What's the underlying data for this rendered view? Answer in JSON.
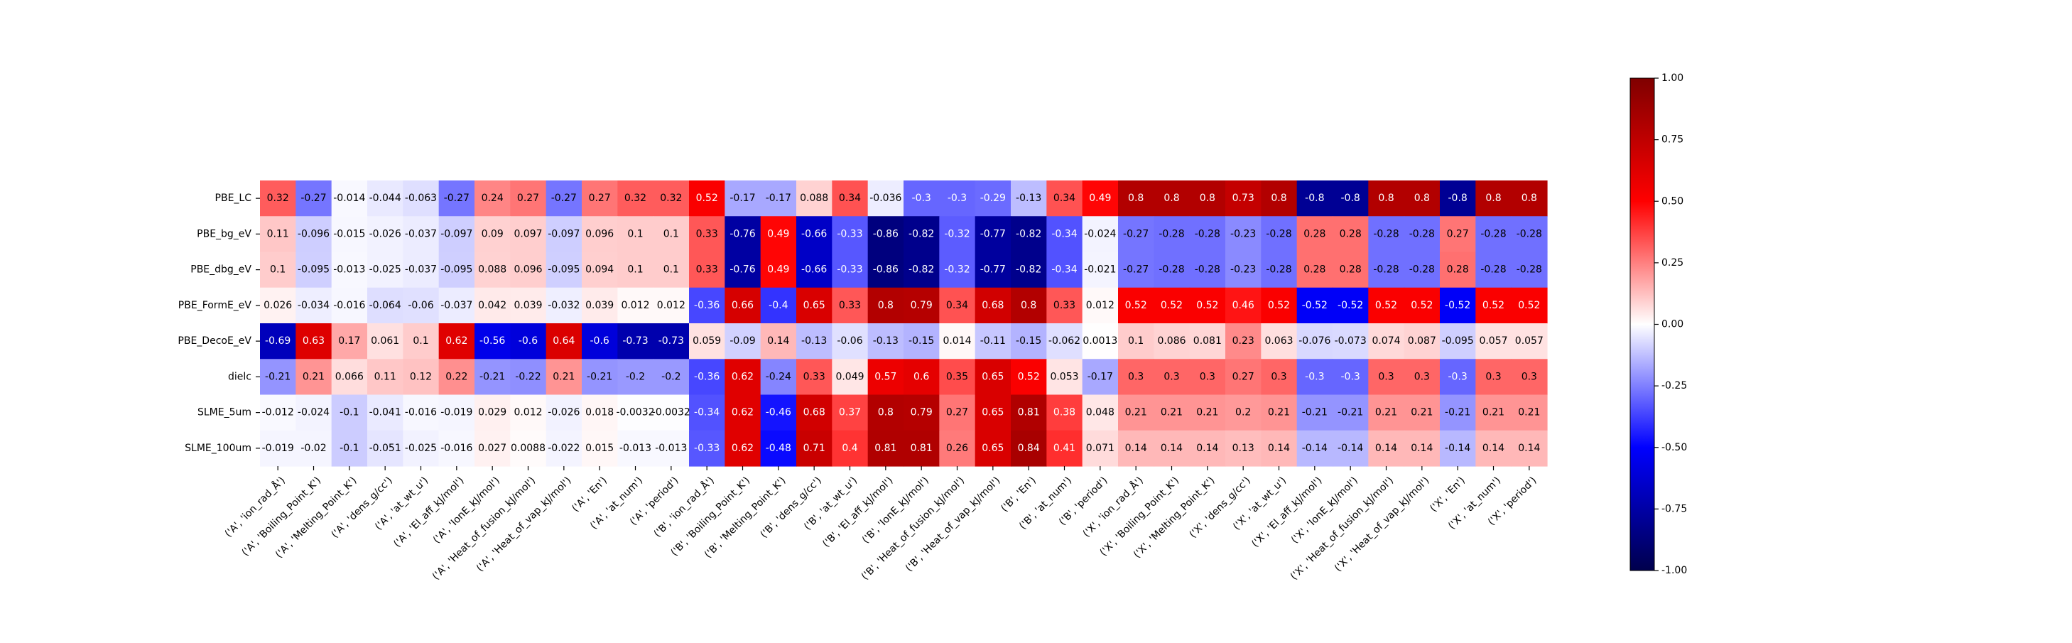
{
  "chart_data": {
    "type": "heatmap",
    "title": "",
    "xlabel": "",
    "ylabel": "",
    "rows": [
      "PBE_LC",
      "PBE_bg_eV",
      "PBE_dbg_eV",
      "PBE_FormE_eV",
      "PBE_DecoE_eV",
      "dielc",
      "SLME_5um",
      "SLME_100um"
    ],
    "columns": [
      "('A', 'ion_rad_Å')",
      "('A', 'Boiling_Point_K')",
      "('A', 'Melting_Point_K')",
      "('A', 'dens_g/cc')",
      "('A', 'at_wt_u')",
      "('A', 'El_aff_kJ/mol')",
      "('A', 'IonE_kJ/mol')",
      "('A', 'Heat_of_fusion_kJ/mol')",
      "('A', 'Heat_of_vap_kJ/mol')",
      "('A', 'En')",
      "('A', 'at_num')",
      "('A', 'period')",
      "('B', 'ion_rad_Å')",
      "('B', 'Boiling_Point_K')",
      "('B', 'Melting_Point_K')",
      "('B', 'dens_g/cc')",
      "('B', 'at_wt_u')",
      "('B', 'El_aff_kJ/mol')",
      "('B', 'IonE_kJ/mol')",
      "('B', 'Heat_of_fusion_kJ/mol')",
      "('B', 'Heat_of_vap_kJ/mol')",
      "('B', 'En')",
      "('B', 'at_num')",
      "('B', 'period')",
      "('X', 'ion_rad_Å')",
      "('X', 'Boiling_Point_K')",
      "('X', 'Melting_Point_K')",
      "('X', 'dens_g/cc')",
      "('X', 'at_wt_u')",
      "('X', 'El_aff_kJ/mol')",
      "('X', 'IonE_kJ/mol')",
      "('X', 'Heat_of_fusion_kJ/mol')",
      "('X', 'Heat_of_vap_kJ/mol')",
      "('X', 'En')",
      "('X', 'at_num')",
      "('X', 'period')"
    ],
    "values": [
      [
        0.32,
        -0.27,
        -0.014,
        -0.044,
        -0.063,
        -0.27,
        0.24,
        0.27,
        -0.27,
        0.27,
        0.32,
        0.32,
        0.52,
        -0.17,
        -0.17,
        0.088,
        0.34,
        -0.036,
        -0.3,
        -0.3,
        -0.29,
        -0.13,
        0.34,
        0.49,
        0.8,
        0.8,
        0.8,
        0.73,
        0.8,
        -0.8,
        -0.8,
        0.8,
        0.8,
        -0.8,
        0.8,
        0.8
      ],
      [
        0.11,
        -0.096,
        -0.015,
        -0.026,
        -0.037,
        -0.097,
        0.09,
        0.097,
        -0.097,
        0.096,
        0.1,
        0.1,
        0.33,
        -0.76,
        0.49,
        -0.66,
        -0.33,
        -0.86,
        -0.82,
        -0.32,
        -0.77,
        -0.82,
        -0.34,
        -0.024,
        -0.27,
        -0.28,
        -0.28,
        -0.23,
        -0.28,
        0.28,
        0.28,
        -0.28,
        -0.28,
        0.27,
        -0.28,
        -0.28
      ],
      [
        0.1,
        -0.095,
        -0.013,
        -0.025,
        -0.037,
        -0.095,
        0.088,
        0.096,
        -0.095,
        0.094,
        0.1,
        0.1,
        0.33,
        -0.76,
        0.49,
        -0.66,
        -0.33,
        -0.86,
        -0.82,
        -0.32,
        -0.77,
        -0.82,
        -0.34,
        -0.021,
        -0.27,
        -0.28,
        -0.28,
        -0.23,
        -0.28,
        0.28,
        0.28,
        -0.28,
        -0.28,
        0.28,
        -0.28,
        -0.28
      ],
      [
        0.026,
        -0.034,
        -0.016,
        -0.064,
        -0.06,
        -0.037,
        0.042,
        0.039,
        -0.032,
        0.039,
        0.012,
        0.012,
        -0.36,
        0.66,
        -0.4,
        0.65,
        0.33,
        0.8,
        0.79,
        0.34,
        0.68,
        0.8,
        0.33,
        0.012,
        0.52,
        0.52,
        0.52,
        0.46,
        0.52,
        -0.52,
        -0.52,
        0.52,
        0.52,
        -0.52,
        0.52,
        0.52
      ],
      [
        -0.69,
        0.63,
        0.17,
        0.061,
        0.1,
        0.62,
        -0.56,
        -0.6,
        0.64,
        -0.6,
        -0.73,
        -0.73,
        0.059,
        -0.09,
        0.14,
        -0.13,
        -0.06,
        -0.13,
        -0.15,
        0.014,
        -0.11,
        -0.15,
        -0.062,
        0.0013,
        0.1,
        0.086,
        0.081,
        0.23,
        0.063,
        -0.076,
        -0.073,
        0.074,
        0.087,
        -0.095,
        0.057,
        0.057
      ],
      [
        -0.21,
        0.21,
        0.066,
        0.11,
        0.12,
        0.22,
        -0.21,
        -0.22,
        0.21,
        -0.21,
        -0.2,
        -0.2,
        -0.36,
        0.62,
        -0.24,
        0.33,
        0.049,
        0.57,
        0.6,
        0.35,
        0.65,
        0.52,
        0.053,
        -0.17,
        0.3,
        0.3,
        0.3,
        0.27,
        0.3,
        -0.3,
        -0.3,
        0.3,
        0.3,
        -0.3,
        0.3,
        0.3
      ],
      [
        -0.012,
        -0.024,
        -0.1,
        -0.041,
        -0.016,
        -0.019,
        0.029,
        0.012,
        -0.026,
        0.018,
        -0.0032,
        -0.0032,
        -0.34,
        0.62,
        -0.46,
        0.68,
        0.37,
        0.8,
        0.79,
        0.27,
        0.65,
        0.81,
        0.38,
        0.048,
        0.21,
        0.21,
        0.21,
        0.2,
        0.21,
        -0.21,
        -0.21,
        0.21,
        0.21,
        -0.21,
        0.21,
        0.21
      ],
      [
        -0.019,
        -0.02,
        -0.1,
        -0.051,
        -0.025,
        -0.016,
        0.027,
        0.0088,
        -0.022,
        0.015,
        -0.013,
        -0.013,
        -0.33,
        0.62,
        -0.48,
        0.71,
        0.4,
        0.81,
        0.81,
        0.26,
        0.65,
        0.84,
        0.41,
        0.071,
        0.14,
        0.14,
        0.14,
        0.13,
        0.14,
        -0.14,
        -0.14,
        0.14,
        0.14,
        -0.14,
        0.14,
        0.14
      ]
    ],
    "labels": [
      [
        "0.32",
        "-0.27",
        "-0.014",
        "-0.044",
        "-0.063",
        "-0.27",
        "0.24",
        "0.27",
        "-0.27",
        "0.27",
        "0.32",
        "0.32",
        "0.52",
        "-0.17",
        "-0.17",
        "0.088",
        "0.34",
        "-0.036",
        "-0.3",
        "-0.3",
        "-0.29",
        "-0.13",
        "0.34",
        "0.49",
        "0.8",
        "0.8",
        "0.8",
        "0.73",
        "0.8",
        "-0.8",
        "-0.8",
        "0.8",
        "0.8",
        "-0.8",
        "0.8",
        "0.8"
      ],
      [
        "0.11",
        "-0.096",
        "-0.015",
        "-0.026",
        "-0.037",
        "-0.097",
        "0.09",
        "0.097",
        "-0.097",
        "0.096",
        "0.1",
        "0.1",
        "0.33",
        "-0.76",
        "0.49",
        "-0.66",
        "-0.33",
        "-0.86",
        "-0.82",
        "-0.32",
        "-0.77",
        "-0.82",
        "-0.34",
        "-0.024",
        "-0.27",
        "-0.28",
        "-0.28",
        "-0.23",
        "-0.28",
        "0.28",
        "0.28",
        "-0.28",
        "-0.28",
        "0.27",
        "-0.28",
        "-0.28"
      ],
      [
        "0.1",
        "-0.095",
        "-0.013",
        "-0.025",
        "-0.037",
        "-0.095",
        "0.088",
        "0.096",
        "-0.095",
        "0.094",
        "0.1",
        "0.1",
        "0.33",
        "-0.76",
        "0.49",
        "-0.66",
        "-0.33",
        "-0.86",
        "-0.82",
        "-0.32",
        "-0.77",
        "-0.82",
        "-0.34",
        "-0.021",
        "-0.27",
        "-0.28",
        "-0.28",
        "-0.23",
        "-0.28",
        "0.28",
        "0.28",
        "-0.28",
        "-0.28",
        "0.28",
        "-0.28",
        "-0.28"
      ],
      [
        "0.026",
        "-0.034",
        "-0.016",
        "-0.064",
        "-0.06",
        "-0.037",
        "0.042",
        "0.039",
        "-0.032",
        "0.039",
        "0.012",
        "0.012",
        "-0.36",
        "0.66",
        "-0.4",
        "0.65",
        "0.33",
        "0.8",
        "0.79",
        "0.34",
        "0.68",
        "0.8",
        "0.33",
        "0.012",
        "0.52",
        "0.52",
        "0.52",
        "0.46",
        "0.52",
        "-0.52",
        "-0.52",
        "0.52",
        "0.52",
        "-0.52",
        "0.52",
        "0.52"
      ],
      [
        "-0.69",
        "0.63",
        "0.17",
        "0.061",
        "0.1",
        "0.62",
        "-0.56",
        "-0.6",
        "0.64",
        "-0.6",
        "-0.73",
        "-0.73",
        "0.059",
        "-0.09",
        "0.14",
        "-0.13",
        "-0.06",
        "-0.13",
        "-0.15",
        "0.014",
        "-0.11",
        "-0.15",
        "-0.062",
        "0.0013",
        "0.1",
        "0.086",
        "0.081",
        "0.23",
        "0.063",
        "-0.076",
        "-0.073",
        "0.074",
        "0.087",
        "-0.095",
        "0.057",
        "0.057"
      ],
      [
        "-0.21",
        "0.21",
        "0.066",
        "0.11",
        "0.12",
        "0.22",
        "-0.21",
        "-0.22",
        "0.21",
        "-0.21",
        "-0.2",
        "-0.2",
        "-0.36",
        "0.62",
        "-0.24",
        "0.33",
        "0.049",
        "0.57",
        "0.6",
        "0.35",
        "0.65",
        "0.52",
        "0.053",
        "-0.17",
        "0.3",
        "0.3",
        "0.3",
        "0.27",
        "0.3",
        "-0.3",
        "-0.3",
        "0.3",
        "0.3",
        "-0.3",
        "0.3",
        "0.3"
      ],
      [
        "-0.012",
        "-0.024",
        "-0.1",
        "-0.041",
        "-0.016",
        "-0.019",
        "0.029",
        "0.012",
        "-0.026",
        "0.018",
        "-0.0032",
        "-0.0032",
        "-0.34",
        "0.62",
        "-0.46",
        "0.68",
        "0.37",
        "0.8",
        "0.79",
        "0.27",
        "0.65",
        "0.81",
        "0.38",
        "0.048",
        "0.21",
        "0.21",
        "0.21",
        "0.2",
        "0.21",
        "-0.21",
        "-0.21",
        "0.21",
        "0.21",
        "-0.21",
        "0.21",
        "0.21"
      ],
      [
        "-0.019",
        "-0.02",
        "-0.1",
        "-0.051",
        "-0.025",
        "-0.016",
        "0.027",
        "0.0088",
        "-0.022",
        "0.015",
        "-0.013",
        "-0.013",
        "-0.33",
        "0.62",
        "-0.48",
        "0.71",
        "0.4",
        "0.81",
        "0.81",
        "0.26",
        "0.65",
        "0.84",
        "0.41",
        "0.071",
        "0.14",
        "0.14",
        "0.14",
        "0.13",
        "0.14",
        "-0.14",
        "-0.14",
        "0.14",
        "0.14",
        "-0.14",
        "0.14",
        "0.14"
      ]
    ],
    "colormap": "seismic",
    "colormap_stops": [
      "#00004c",
      "#0000ff",
      "#ffffff",
      "#ff0000",
      "#7f0000"
    ],
    "vmin": -1.0,
    "vmax": 1.0,
    "colorbar_ticks": [
      "1.00",
      "0.75",
      "0.50",
      "0.25",
      "0.00",
      "-0.25",
      "-0.50",
      "-0.75",
      "-1.00"
    ],
    "grid": false,
    "legend": "right"
  }
}
